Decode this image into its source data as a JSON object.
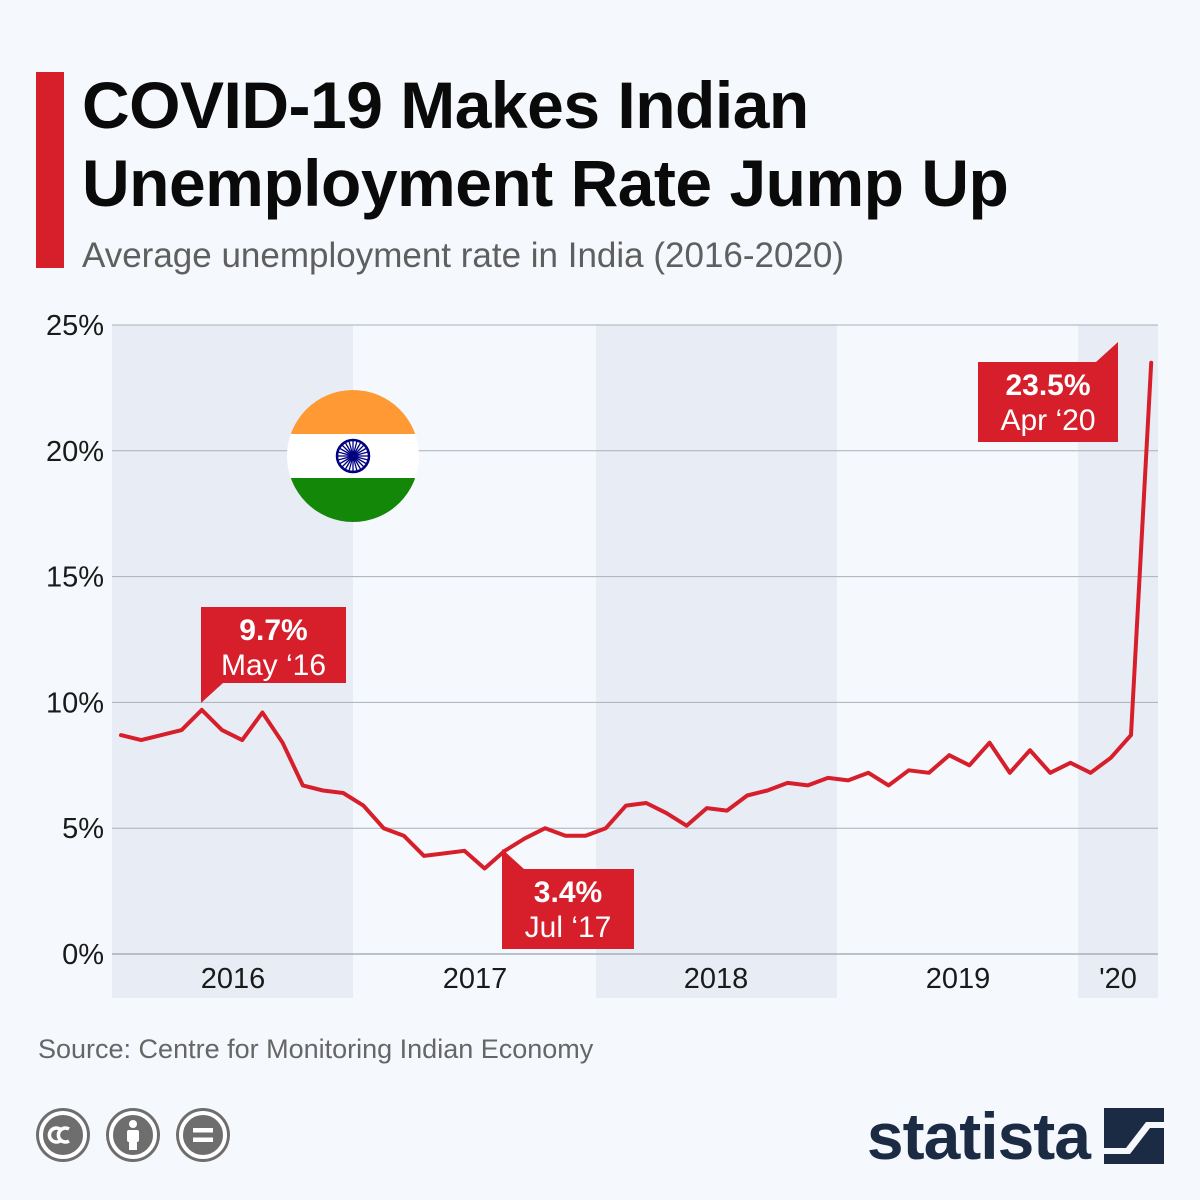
{
  "header": {
    "title_line1": "COVID-19 Makes Indian",
    "title_line2": "Unemployment Rate Jump Up",
    "subtitle": "Average unemployment rate in India (2016-2020)"
  },
  "colors": {
    "accent": "#d71f2c",
    "line": "#d71f2c",
    "band": "#e8edf5",
    "brand": "#1b2b44"
  },
  "chart_data": {
    "type": "line",
    "title": "COVID-19 Makes Indian Unemployment Rate Jump Up",
    "subtitle": "Average unemployment rate in India (2016-2020)",
    "ylim": [
      0,
      25
    ],
    "y_ticks": [
      "0%",
      "5%",
      "10%",
      "15%",
      "20%",
      "25%"
    ],
    "x_ticks": [
      "2016",
      "2017",
      "2018",
      "2019",
      "'20"
    ],
    "grid": true,
    "series": [
      {
        "x": [
          "Jan 2016",
          "Feb 2016",
          "Mar 2016",
          "Apr 2016",
          "May 2016",
          "Jun 2016",
          "Jul 2016",
          "Aug 2016",
          "Sep 2016",
          "Oct 2016",
          "Nov 2016",
          "Dec 2016",
          "Jan 2017",
          "Feb 2017",
          "Mar 2017",
          "Apr 2017",
          "May 2017",
          "Jun 2017",
          "Jul 2017",
          "Aug 2017",
          "Sep 2017",
          "Oct 2017",
          "Nov 2017",
          "Dec 2017",
          "Jan 2018",
          "Feb 2018",
          "Mar 2018",
          "Apr 2018",
          "May 2018",
          "Jun 2018",
          "Jul 2018",
          "Aug 2018",
          "Sep 2018",
          "Oct 2018",
          "Nov 2018",
          "Dec 2018",
          "Jan 2019",
          "Feb 2019",
          "Mar 2019",
          "Apr 2019",
          "May 2019",
          "Jun 2019",
          "Jul 2019",
          "Aug 2019",
          "Sep 2019",
          "Oct 2019",
          "Nov 2019",
          "Dec 2019",
          "Jan 2020",
          "Feb 2020",
          "Mar 2020",
          "Apr 2020"
        ],
        "values": [
          8.7,
          8.5,
          8.7,
          8.9,
          9.7,
          8.9,
          8.5,
          9.6,
          8.4,
          6.7,
          6.5,
          6.4,
          5.9,
          5.0,
          4.7,
          3.9,
          4.0,
          4.1,
          3.4,
          4.1,
          4.6,
          5.0,
          4.7,
          4.7,
          5.0,
          5.9,
          6.0,
          5.6,
          5.1,
          5.8,
          5.7,
          6.3,
          6.5,
          6.8,
          6.7,
          7.0,
          6.9,
          7.2,
          6.7,
          7.3,
          7.2,
          7.9,
          7.5,
          8.4,
          7.2,
          8.1,
          7.2,
          7.6,
          7.2,
          7.8,
          8.7,
          23.5
        ]
      }
    ],
    "annotations": [
      {
        "value": "9.7%",
        "date": "May ‘16",
        "index": 4
      },
      {
        "value": "3.4%",
        "date": "Jul ‘17",
        "index": 18
      },
      {
        "value": "23.5%",
        "date": "Apr ‘20",
        "index": 51
      }
    ]
  },
  "footer": {
    "source": "Source: Centre for Monitoring Indian Economy",
    "brand": "statista",
    "license_icons": [
      "cc-icon",
      "attribution-icon",
      "no-derivatives-icon"
    ]
  }
}
